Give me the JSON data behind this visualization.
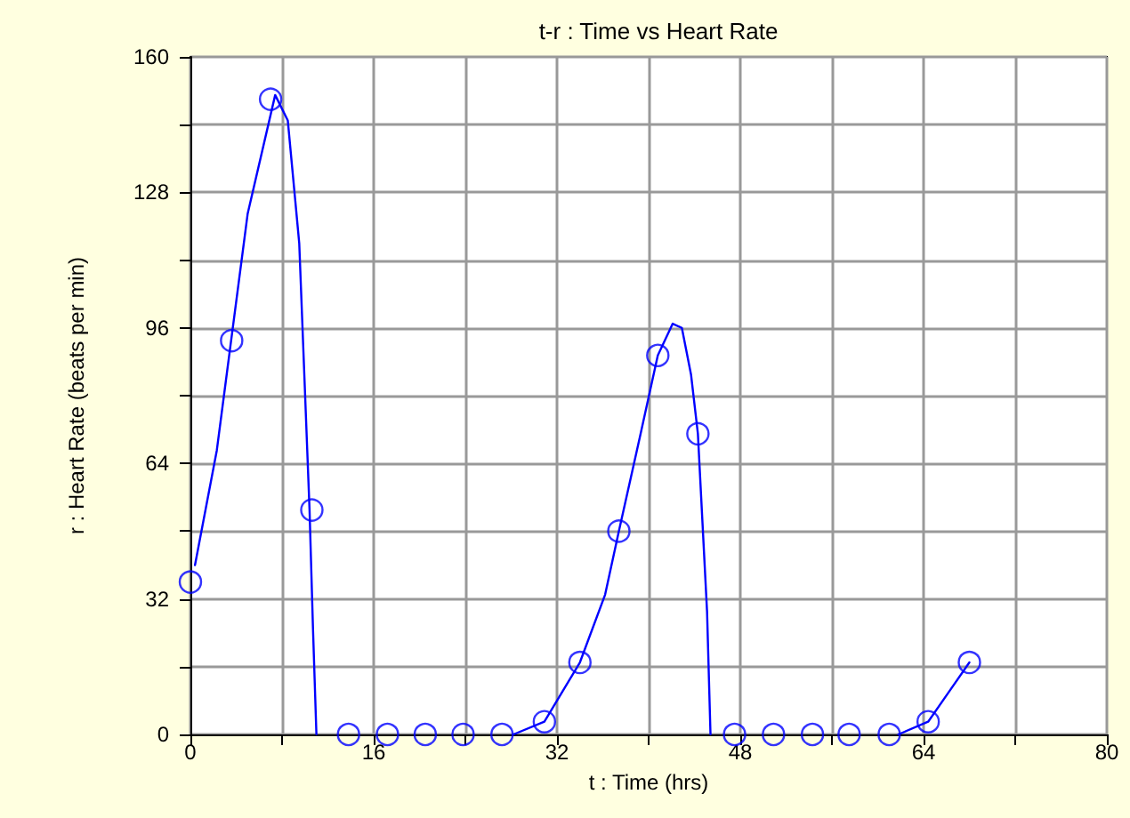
{
  "chart_data": {
    "type": "scatter",
    "title": "t-r : Time vs Heart Rate",
    "xlabel": "t : Time (hrs)",
    "ylabel": "r : Heart Rate (beats per min)",
    "xlim": [
      0,
      80
    ],
    "xticks": [
      0,
      {
        "value": 8,
        "label": null
      },
      16,
      {
        "value": 24,
        "label": null
      },
      32,
      {
        "value": 40,
        "label": null
      },
      48,
      {
        "value": 56,
        "label": null
      },
      64,
      {
        "value": 72,
        "label": null
      },
      80
    ],
    "ylim": [
      0,
      160
    ],
    "yticks": [
      0,
      {
        "value": 16,
        "label": null
      },
      32,
      {
        "value": 48,
        "label": null
      },
      64,
      {
        "value": 80,
        "label": null
      },
      96,
      {
        "value": 112,
        "label": null
      },
      128,
      {
        "value": 144,
        "label": null
      },
      160
    ],
    "grid": true,
    "series": [
      {
        "marker": "circle",
        "color": "#0000ff",
        "x": [
          0,
          3.6,
          7.0,
          10.6,
          13.8,
          17.2,
          20.5,
          23.8,
          27.2,
          30.9,
          34,
          37.4,
          40.8,
          44.3,
          47.5,
          50.9,
          54.3,
          57.5,
          61,
          64.4,
          68
        ],
        "values": [
          36,
          93,
          150,
          53,
          0,
          0,
          0,
          0,
          0,
          3,
          17,
          48,
          89.5,
          71,
          0,
          0,
          0,
          0,
          0,
          3,
          17
        ]
      },
      {
        "type": "line",
        "marker": "none",
        "line_style": "solid",
        "color": "#0000ff",
        "x": [
          0.4,
          2.3,
          5.0,
          7.4,
          8.5,
          9.5,
          10.0,
          10.4,
          10.7,
          11.0,
          20,
          28.2,
          30.9,
          34,
          36.2,
          37.4,
          39.3,
          40.8,
          42.1,
          42.9,
          43.7,
          44.3,
          44.7,
          45.1,
          45.4,
          55,
          61.8,
          64.4,
          66.2,
          68
        ],
        "values": [
          40,
          67,
          123,
          151,
          145,
          116,
          81,
          53,
          25,
          0,
          null,
          0,
          3,
          17,
          33,
          48,
          71,
          89.5,
          97,
          96,
          85,
          71,
          50,
          29,
          0,
          null,
          0,
          3,
          10,
          17
        ]
      }
    ]
  }
}
